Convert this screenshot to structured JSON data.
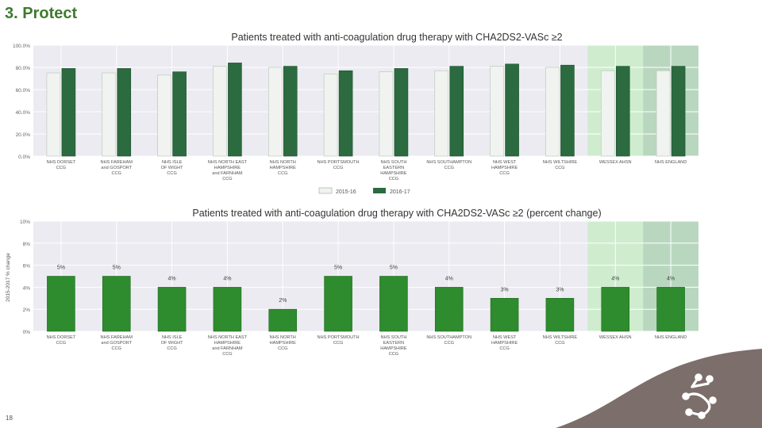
{
  "slide": {
    "title": "3. Protect",
    "page_number": "18"
  },
  "colors": {
    "bg": "#ebebf1",
    "bar_prev": "#f1f3f0",
    "bar_curr": "#2b6b3f",
    "bar_change": "#2e8b2e",
    "wessex_band": "#cfeccf",
    "england_band": "#b9d7bf",
    "footer": "#7c6e6a"
  },
  "chart_data": [
    {
      "type": "bar",
      "title": "Patients treated with anti-coagulation drug therapy with CHA2DS2-VASc ≥2",
      "ylim": [
        0,
        100
      ],
      "y_ticks": [
        "0.0%",
        "20.0%",
        "40.0%",
        "60.0%",
        "80.0%",
        "100.0%"
      ],
      "categories": [
        [
          "NHS DORSET",
          "CCG"
        ],
        [
          "NHS FAREHAM",
          "and GOSPORT",
          "CCG"
        ],
        [
          "NHS ISLE",
          "OF WIGHT",
          "CCG"
        ],
        [
          "NHS NORTH EAST",
          "HAMPSHIRE",
          "and FARNHAM",
          "CCG"
        ],
        [
          "NHS NORTH",
          "HAMPSHIRE",
          "CCG"
        ],
        [
          "NHS PORTSMOUTH",
          "CCG"
        ],
        [
          "NHS SOUTH",
          "EASTERN",
          "HAMPSHIRE",
          "CCG"
        ],
        [
          "NHS SOUTHAMPTON",
          "CCG"
        ],
        [
          "NHS WEST",
          "HAMPSHIRE",
          "CCG"
        ],
        [
          "NHS WILTSHIRE",
          "CCG"
        ],
        [
          "WESSEX AHSN"
        ],
        [
          "NHS ENGLAND"
        ]
      ],
      "series": [
        {
          "name": "2015-16",
          "values": [
            75,
            75,
            73,
            81,
            80,
            74,
            76,
            77,
            81,
            80,
            77,
            77
          ]
        },
        {
          "name": "2016-17",
          "values": [
            79,
            79,
            76,
            84,
            81,
            77,
            79,
            81,
            83,
            82,
            81,
            81
          ]
        }
      ]
    },
    {
      "type": "bar",
      "title": "Patients treated with anti-coagulation drug therapy with CHA2DS2-VASc ≥2 (percent change)",
      "ylabel": "2015-2017 % change",
      "ylim": [
        0,
        10
      ],
      "y_ticks": [
        "0%",
        "2%",
        "4%",
        "6%",
        "8%",
        "10%"
      ],
      "categories": [
        [
          "NHS DORSET",
          "CCG"
        ],
        [
          "NHS FAREHAM",
          "and GOSPORT",
          "CCG"
        ],
        [
          "NHS ISLE",
          "OF WIGHT",
          "CCG"
        ],
        [
          "NHS NORTH EAST",
          "HAMPSHIRE",
          "and FARNHAM",
          "CCG"
        ],
        [
          "NHS NORTH",
          "HAMPSHIRE",
          "CCG"
        ],
        [
          "NHS PORTSMOUTH",
          "CCG"
        ],
        [
          "NHS SOUTH",
          "EASTERN",
          "HAMPSHIRE",
          "CCG"
        ],
        [
          "NHS SOUTHAMPTON",
          "CCG"
        ],
        [
          "NHS WEST",
          "HAMPSHIRE",
          "CCG"
        ],
        [
          "NHS WILTSHIRE",
          "CCG"
        ],
        [
          "WESSEX AHSN"
        ],
        [
          "NHS ENGLAND"
        ]
      ],
      "values": [
        5,
        5,
        4,
        4,
        2,
        5,
        5,
        4,
        3,
        3,
        4,
        4
      ],
      "data_labels": [
        "5%",
        "5%",
        "4%",
        "4%",
        "2%",
        "5%",
        "5%",
        "4%",
        "3%",
        "3%",
        "4%",
        "4%"
      ]
    }
  ]
}
